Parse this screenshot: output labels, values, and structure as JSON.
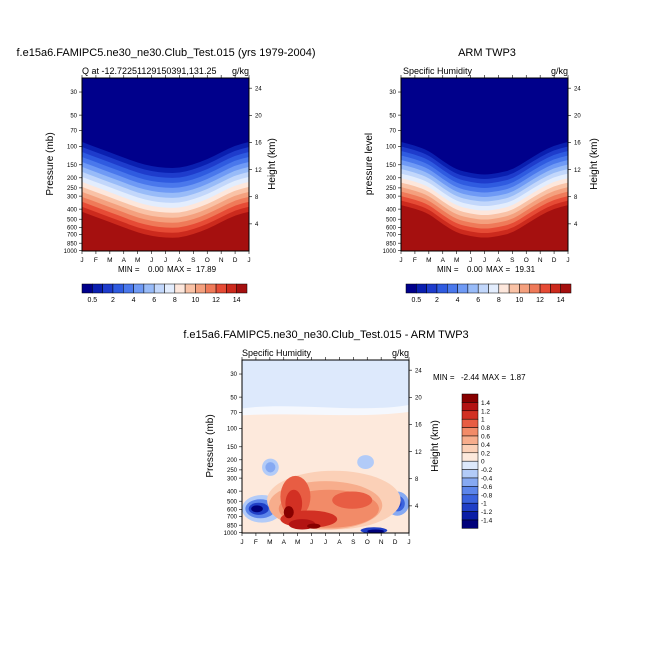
{
  "chart_data": [
    {
      "type": "heatmap",
      "title": "f.e15a6.FAMIPC5.ne30_ne30.Club_Test.015 (yrs 1979-2004)",
      "subtitle_left": "Q at -12.72251129150391,131.25",
      "units": "g/kg",
      "ylabel": "Pressure (mb)",
      "ylabel_right": "Height (km)",
      "xlabel": "",
      "x_ticks": [
        "J",
        "F",
        "M",
        "A",
        "M",
        "J",
        "J",
        "A",
        "S",
        "O",
        "N",
        "D",
        "J"
      ],
      "y_ticks": [
        "30",
        "50",
        "70",
        "100",
        "150",
        "200",
        "250",
        "300",
        "400",
        "500",
        "600",
        "700",
        "850",
        "1000"
      ],
      "y_right_ticks": [
        "24",
        "20",
        "16",
        "12",
        "8",
        "4"
      ],
      "stats": {
        "min_label": "MIN =",
        "min": "0.00",
        "max_label": "MAX =",
        "max": "17.89"
      },
      "colorbar": {
        "orientation": "horizontal",
        "labels": [
          "0.5",
          "2",
          "4",
          "6",
          "8",
          "10",
          "12",
          "14"
        ]
      },
      "moisture_top_pct_height": [
        0.63,
        0.6,
        0.57,
        0.54,
        0.51,
        0.49,
        0.48,
        0.48,
        0.5,
        0.53,
        0.57,
        0.61,
        0.63
      ]
    },
    {
      "type": "heatmap",
      "title": "ARM TWP3",
      "subtitle_left": "Specific Humidity",
      "units": "g/kg",
      "ylabel": "pressure level",
      "ylabel_right": "Height (km)",
      "xlabel": "",
      "x_ticks": [
        "J",
        "F",
        "M",
        "A",
        "M",
        "J",
        "J",
        "A",
        "S",
        "O",
        "N",
        "D",
        "J"
      ],
      "y_ticks": [
        "30",
        "50",
        "70",
        "100",
        "150",
        "200",
        "250",
        "300",
        "400",
        "500",
        "600",
        "700",
        "850",
        "1000"
      ],
      "y_right_ticks": [
        "24",
        "20",
        "16",
        "12",
        "8",
        "4"
      ],
      "stats": {
        "min_label": "MIN =",
        "min": "0.00",
        "max_label": "MAX =",
        "max": "19.31"
      },
      "colorbar": {
        "orientation": "horizontal",
        "labels": [
          "0.5",
          "2",
          "4",
          "6",
          "8",
          "10",
          "12",
          "14"
        ]
      },
      "moisture_top_pct_height": [
        0.63,
        0.61,
        0.58,
        0.52,
        0.47,
        0.45,
        0.44,
        0.45,
        0.47,
        0.52,
        0.57,
        0.61,
        0.63
      ]
    },
    {
      "type": "heatmap",
      "title": "f.e15a6.FAMIPC5.ne30_ne30.Club_Test.015 - ARM TWP3",
      "subtitle_left": "Specific Humidity",
      "units": "g/kg",
      "ylabel": "Pressure (mb)",
      "ylabel_right": "Height (km)",
      "xlabel": "",
      "x_ticks": [
        "J",
        "F",
        "M",
        "A",
        "M",
        "J",
        "J",
        "A",
        "S",
        "O",
        "N",
        "D",
        "J"
      ],
      "y_ticks": [
        "30",
        "50",
        "70",
        "100",
        "150",
        "200",
        "250",
        "300",
        "400",
        "500",
        "600",
        "700",
        "850",
        "1000"
      ],
      "y_right_ticks": [
        "24",
        "20",
        "16",
        "12",
        "8",
        "4"
      ],
      "stats": {
        "min_label": "MIN =",
        "min": "-2.44",
        "max_label": "MAX =",
        "max": "1.87"
      },
      "colorbar": {
        "orientation": "vertical",
        "labels": [
          "1.4",
          "1.2",
          "1",
          "0.8",
          "0.6",
          "0.4",
          "0.2",
          "0",
          "-0.2",
          "-0.4",
          "-0.6",
          "-0.8",
          "-1",
          "-1.2",
          "-1.4"
        ]
      }
    }
  ],
  "colors": {
    "q_scale": [
      "#00008b",
      "#0a1fb0",
      "#1e3ccc",
      "#2f5be0",
      "#4a78ec",
      "#6f9af5",
      "#98bbf8",
      "#c2d7fb",
      "#e3edfd",
      "#fde7dc",
      "#f9c2a6",
      "#f4a07e",
      "#ef7a59",
      "#e64b35",
      "#cc2a1d",
      "#a5100f"
    ],
    "diff_scale": [
      "#00007a",
      "#0b1ea6",
      "#1f3ec6",
      "#3a62dd",
      "#5c85ea",
      "#86a9f2",
      "#b2cbf8",
      "#dde9fc",
      "#fde9dc",
      "#fbd0b7",
      "#f7ad8c",
      "#f28b68",
      "#e85d43",
      "#d23023",
      "#b31313",
      "#870000"
    ]
  }
}
